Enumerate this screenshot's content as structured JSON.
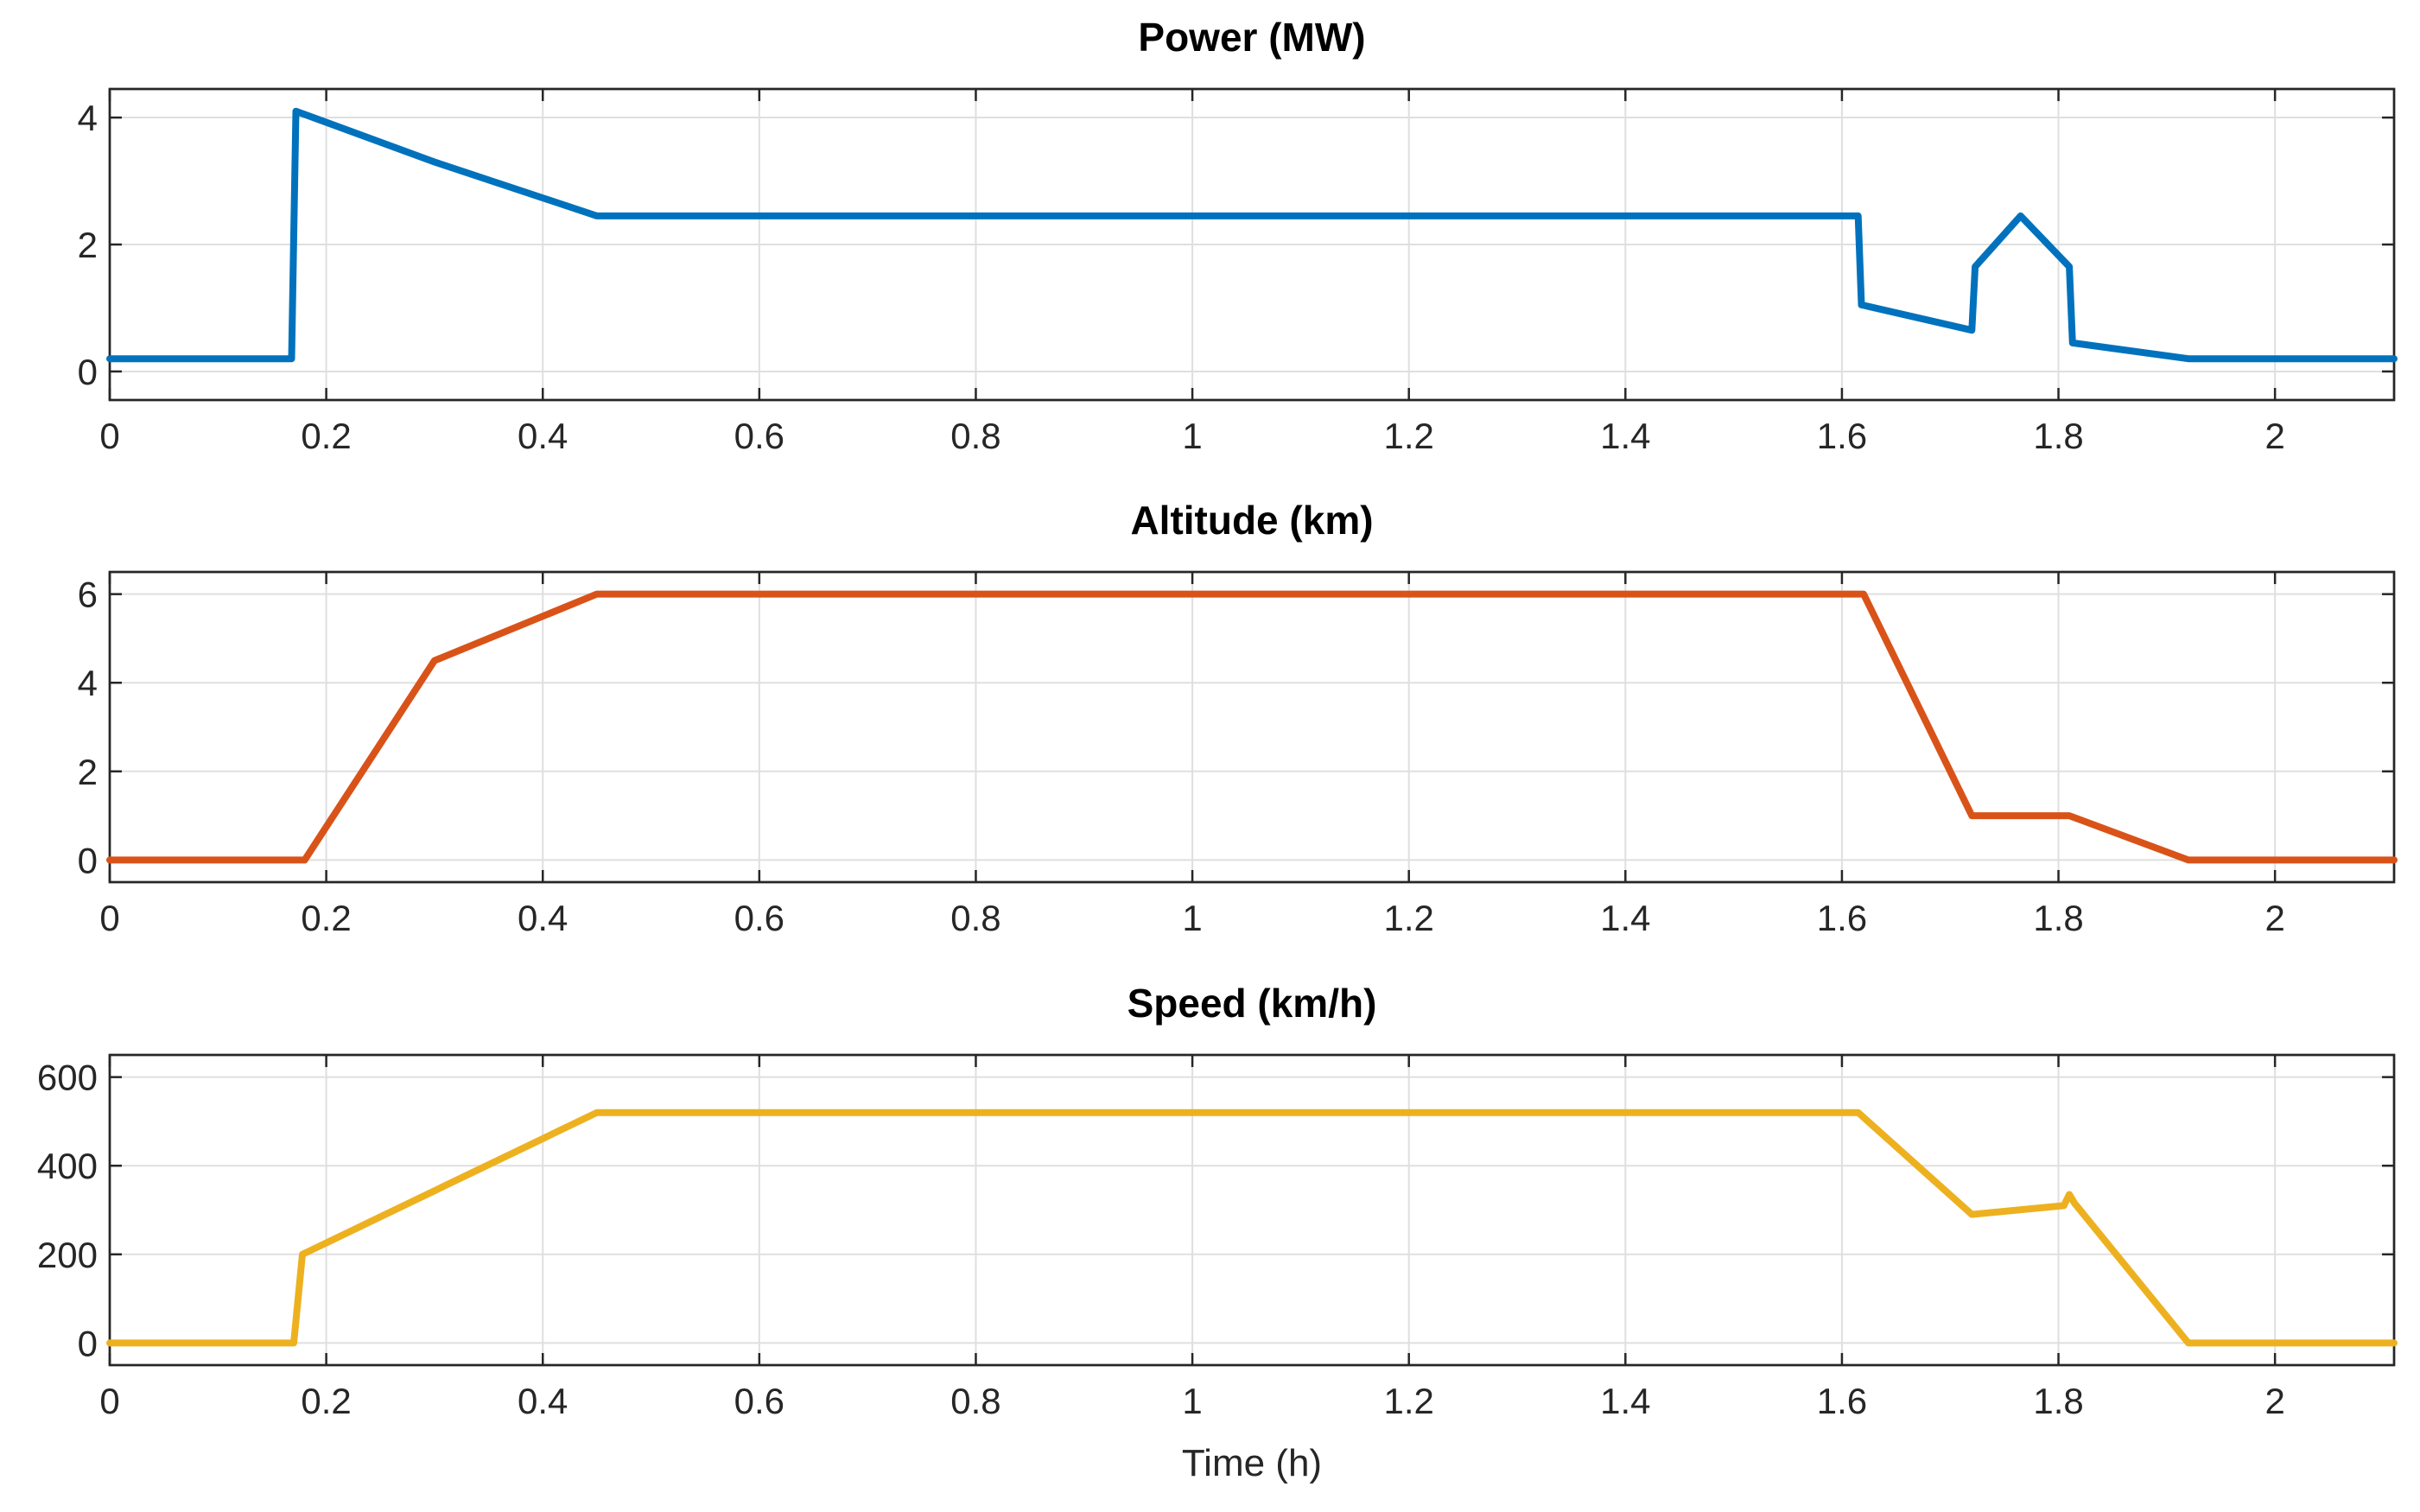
{
  "chart_data": [
    {
      "type": "line",
      "title": "Power (MW)",
      "xlabel": "",
      "ylabel": "",
      "xlim": [
        0,
        2.11
      ],
      "ylim": [
        -0.45,
        4.45
      ],
      "xticks": [
        0,
        0.2,
        0.4,
        0.6,
        0.8,
        1,
        1.2,
        1.4,
        1.6,
        1.8,
        2
      ],
      "xtick_labels": [
        "0",
        "0.2",
        "0.4",
        "0.6",
        "0.8",
        "1",
        "1.2",
        "1.4",
        "1.6",
        "1.8",
        "2"
      ],
      "yticks": [
        0,
        2,
        4
      ],
      "ytick_labels": [
        "0",
        "2",
        "4"
      ],
      "grid": true,
      "color": "#0072BD",
      "series": [
        {
          "name": "Power",
          "x": [
            0,
            0.168,
            0.172,
            0.3,
            0.45,
            1.615,
            1.618,
            1.72,
            1.723,
            1.765,
            1.81,
            1.813,
            1.92,
            2.11
          ],
          "y": [
            0.2,
            0.2,
            4.1,
            3.3,
            2.45,
            2.45,
            1.05,
            0.65,
            1.65,
            2.45,
            1.65,
            0.45,
            0.2,
            0.2
          ]
        }
      ]
    },
    {
      "type": "line",
      "title": "Altitude (km)",
      "xlabel": "",
      "ylabel": "",
      "xlim": [
        0,
        2.11
      ],
      "ylim": [
        -0.5,
        6.5
      ],
      "xticks": [
        0,
        0.2,
        0.4,
        0.6,
        0.8,
        1,
        1.2,
        1.4,
        1.6,
        1.8,
        2
      ],
      "xtick_labels": [
        "0",
        "0.2",
        "0.4",
        "0.6",
        "0.8",
        "1",
        "1.2",
        "1.4",
        "1.6",
        "1.8",
        "2"
      ],
      "yticks": [
        0,
        2,
        4,
        6
      ],
      "ytick_labels": [
        "0",
        "2",
        "4",
        "6"
      ],
      "grid": true,
      "color": "#D95319",
      "series": [
        {
          "name": "Altitude",
          "x": [
            0,
            0.18,
            0.3,
            0.45,
            1.62,
            1.72,
            1.81,
            1.92,
            2.11
          ],
          "y": [
            0,
            0,
            4.5,
            6,
            6,
            1,
            1,
            0,
            0
          ]
        }
      ]
    },
    {
      "type": "line",
      "title": "Speed (km/h)",
      "xlabel": "Time (h)",
      "ylabel": "",
      "xlim": [
        0,
        2.11
      ],
      "ylim": [
        -50,
        650
      ],
      "xticks": [
        0,
        0.2,
        0.4,
        0.6,
        0.8,
        1,
        1.2,
        1.4,
        1.6,
        1.8,
        2
      ],
      "xtick_labels": [
        "0",
        "0.2",
        "0.4",
        "0.6",
        "0.8",
        "1",
        "1.2",
        "1.4",
        "1.6",
        "1.8",
        "2"
      ],
      "yticks": [
        0,
        200,
        400,
        600
      ],
      "ytick_labels": [
        "0",
        "200",
        "400",
        "600"
      ],
      "grid": true,
      "color": "#EDB120",
      "series": [
        {
          "name": "Speed",
          "x": [
            0,
            0.17,
            0.178,
            0.45,
            1.615,
            1.72,
            1.805,
            1.81,
            1.815,
            1.92,
            2.11
          ],
          "y": [
            0,
            0,
            200,
            520,
            520,
            290,
            310,
            335,
            315,
            0,
            0
          ]
        }
      ]
    }
  ]
}
